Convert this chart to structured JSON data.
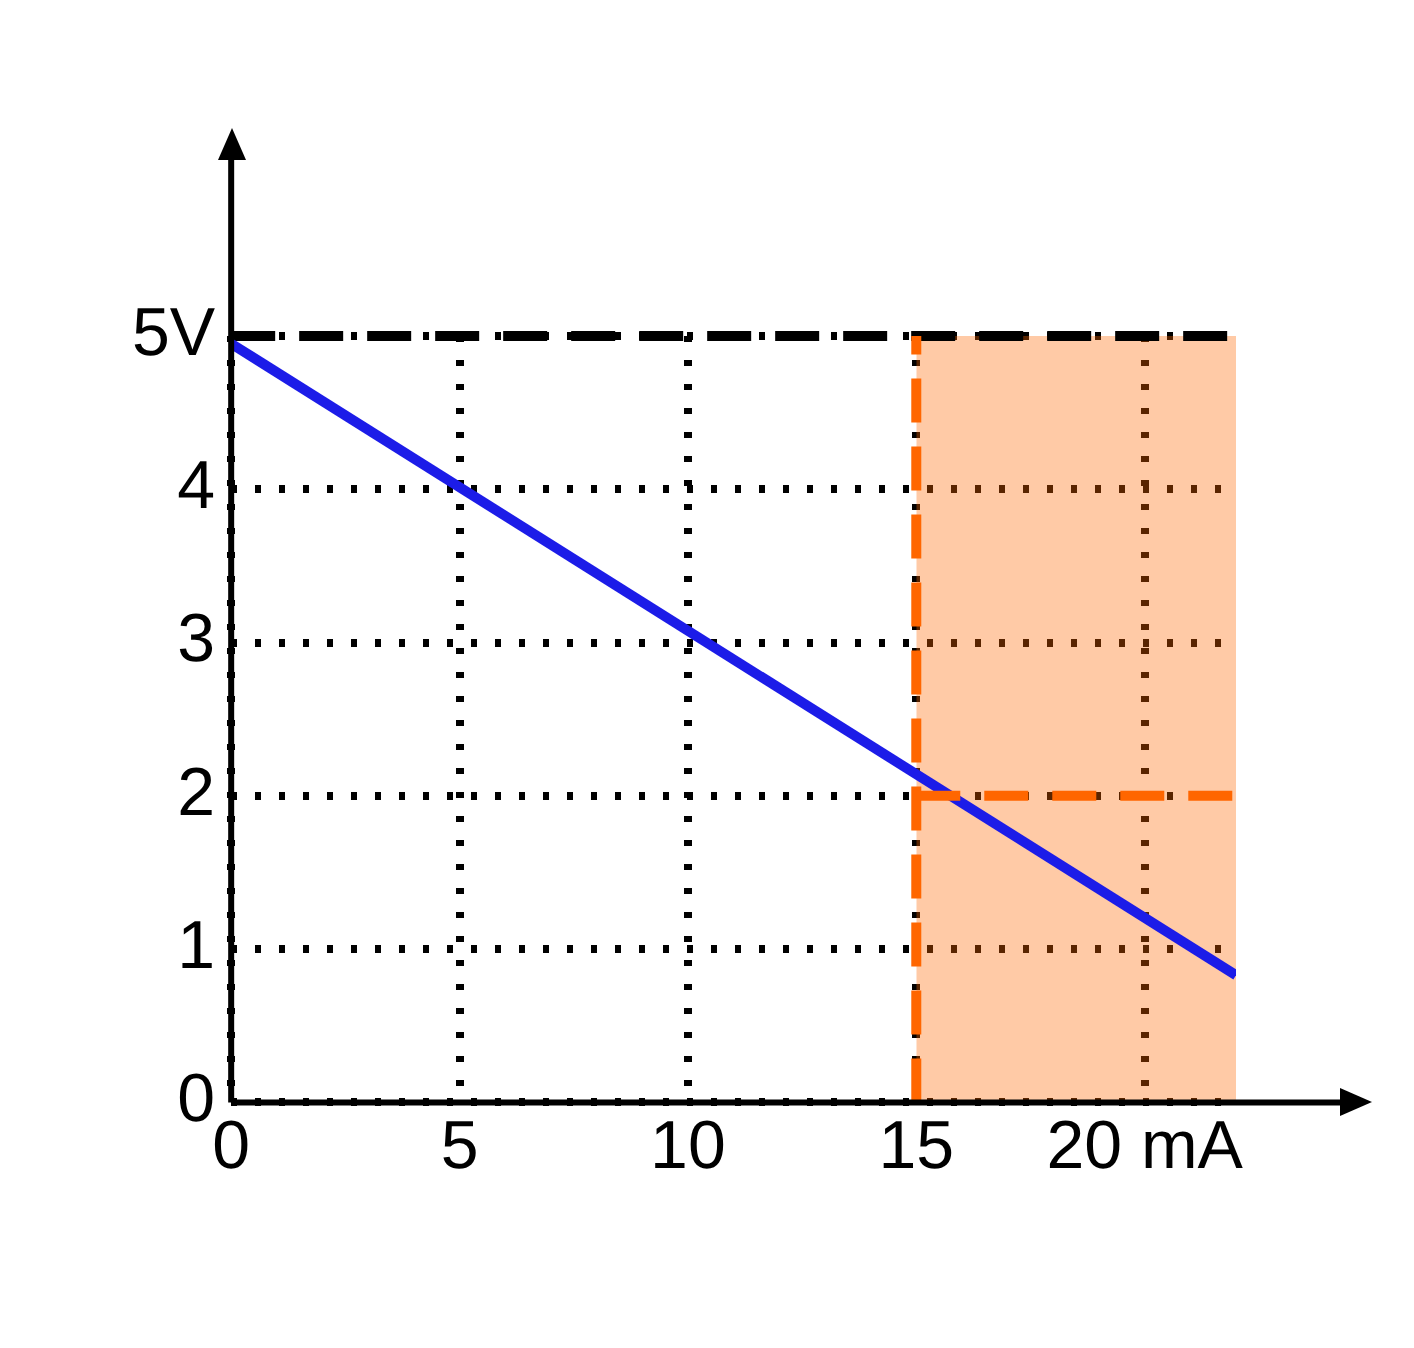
{
  "chart_data": {
    "type": "line",
    "xlim": [
      0,
      22
    ],
    "ylim": [
      0,
      5
    ],
    "xticks": [
      0,
      5,
      10,
      15,
      {
        "value": 20,
        "label": "20 mA"
      }
    ],
    "yticks": [
      0,
      1,
      2,
      3,
      4,
      {
        "value": 5,
        "label": "5V"
      }
    ],
    "grid": true,
    "legend": false,
    "marker": "none",
    "series": [
      {
        "color": "#ff6600",
        "x": [
          15,
          22
        ],
        "values": [
          2,
          2
        ],
        "line_style": "dashed"
      },
      {
        "color": "#1c1ce8",
        "x": [
          0,
          22
        ],
        "values": [
          4.95,
          0.83
        ],
        "line_style": "solid"
      }
    ],
    "ref_lines": [
      {
        "axis": "y",
        "value": 5,
        "color": "#000000",
        "line_style": "dashed"
      },
      {
        "axis": "x",
        "value": 15,
        "color": "#ff6600",
        "line_style": "dashed"
      }
    ],
    "bands": [
      {
        "axis": "x",
        "from": 15,
        "to": 22,
        "color": "#ff6600"
      }
    ]
  }
}
